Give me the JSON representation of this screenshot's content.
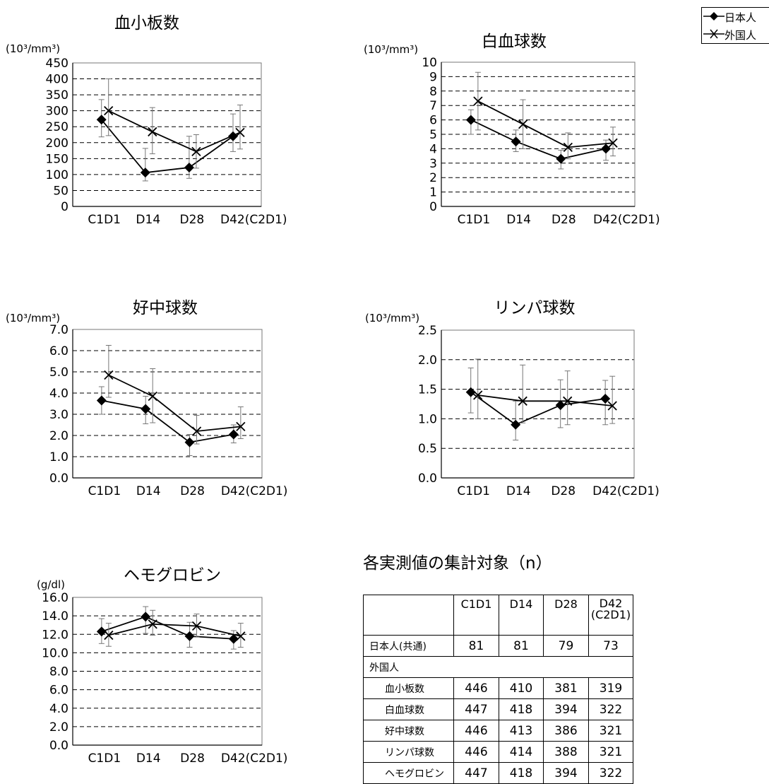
{
  "legend": [
    {
      "name": "日本人",
      "marker": "diamond"
    },
    {
      "name": "外国人",
      "marker": "x"
    }
  ],
  "chart_data": [
    {
      "type": "line",
      "title": "血小板数",
      "ylabel": "(10³/mm³)",
      "categories": [
        "C1D1",
        "D14",
        "D28",
        "D42(C2D1)"
      ],
      "ylim": [
        0,
        450
      ],
      "yticks": [
        "0",
        "50",
        "100",
        "150",
        "200",
        "250",
        "300",
        "350",
        "400",
        "450"
      ],
      "grid": "dashed horizontal",
      "series": [
        {
          "name": "日本人",
          "marker": "diamond",
          "values": [
            272,
            106,
            122,
            220
          ],
          "err_low": [
            218,
            80,
            88,
            172
          ],
          "err_high": [
            335,
            182,
            220,
            290
          ]
        },
        {
          "name": "外国人",
          "marker": "x",
          "values": [
            300,
            234,
            172,
            232
          ],
          "err_low": [
            222,
            165,
            120,
            180
          ],
          "err_high": [
            400,
            310,
            225,
            318
          ]
        }
      ]
    },
    {
      "type": "line",
      "title": "白血球数",
      "ylabel": "(10³/mm³)",
      "categories": [
        "C1D1",
        "D14",
        "D28",
        "D42(C2D1)"
      ],
      "ylim": [
        0,
        10
      ],
      "yticks": [
        "0",
        "1",
        "2",
        "3",
        "4",
        "5",
        "6",
        "7",
        "8",
        "9",
        "10"
      ],
      "grid": "dashed horizontal",
      "series": [
        {
          "name": "日本人",
          "marker": "diamond",
          "values": [
            6.0,
            4.5,
            3.3,
            4.0
          ],
          "err_low": [
            5.0,
            3.8,
            2.6,
            3.2
          ],
          "err_high": [
            6.7,
            5.3,
            3.9,
            4.6
          ]
        },
        {
          "name": "外国人",
          "marker": "x",
          "values": [
            7.3,
            5.7,
            4.1,
            4.4
          ],
          "err_low": [
            5.3,
            4.0,
            3.3,
            3.5
          ],
          "err_high": [
            9.3,
            7.4,
            5.1,
            5.5
          ]
        }
      ]
    },
    {
      "type": "line",
      "title": "好中球数",
      "ylabel": "(10³/mm³)",
      "categories": [
        "C1D1",
        "D14",
        "D28",
        "D42(C2D1)"
      ],
      "ylim": [
        0,
        7
      ],
      "yticks": [
        "0.0",
        "1.0",
        "2.0",
        "3.0",
        "4.0",
        "5.0",
        "6.0",
        "7.0"
      ],
      "grid": "dashed horizontal",
      "series": [
        {
          "name": "日本人",
          "marker": "diamond",
          "values": [
            3.65,
            3.25,
            1.68,
            2.05
          ],
          "err_low": [
            3.0,
            2.55,
            1.05,
            1.65
          ],
          "err_high": [
            4.3,
            3.85,
            2.05,
            2.5
          ]
        },
        {
          "name": "外国人",
          "marker": "x",
          "values": [
            4.85,
            3.85,
            2.2,
            2.42
          ],
          "err_low": [
            3.8,
            2.6,
            1.6,
            1.85
          ],
          "err_high": [
            6.25,
            5.15,
            2.95,
            3.35
          ]
        }
      ]
    },
    {
      "type": "line",
      "title": "リンパ球数",
      "ylabel": "(10³/mm³)",
      "categories": [
        "C1D1",
        "D14",
        "D28",
        "D42(C2D1)"
      ],
      "ylim": [
        0,
        2.5
      ],
      "yticks": [
        "0.0",
        "0.5",
        "1.0",
        "1.5",
        "2.0",
        "2.5"
      ],
      "grid": "dashed horizontal",
      "series": [
        {
          "name": "日本人",
          "marker": "diamond",
          "values": [
            1.45,
            0.9,
            1.23,
            1.34
          ],
          "err_low": [
            1.1,
            0.64,
            0.85,
            0.9
          ],
          "err_high": [
            1.86,
            1.3,
            1.66,
            1.65
          ]
        },
        {
          "name": "外国人",
          "marker": "x",
          "values": [
            1.4,
            1.3,
            1.3,
            1.22
          ],
          "err_low": [
            1.0,
            0.93,
            0.9,
            0.92
          ],
          "err_high": [
            2.01,
            1.91,
            1.81,
            1.72
          ]
        }
      ]
    },
    {
      "type": "line",
      "title": "ヘモグロビン",
      "ylabel": "(g/dl)",
      "categories": [
        "C1D1",
        "D14",
        "D28",
        "D42(C2D1)"
      ],
      "ylim": [
        0,
        16
      ],
      "yticks": [
        "0.0",
        "2.0",
        "4.0",
        "6.0",
        "8.0",
        "10.0",
        "12.0",
        "14.0",
        "16.0"
      ],
      "grid": "dashed horizontal",
      "series": [
        {
          "name": "日本人",
          "marker": "diamond",
          "values": [
            12.3,
            13.9,
            11.8,
            11.5
          ],
          "err_low": [
            11.0,
            12.1,
            10.6,
            10.4
          ],
          "err_high": [
            13.7,
            15.0,
            13.3,
            12.4
          ]
        },
        {
          "name": "外国人",
          "marker": "x",
          "values": [
            11.9,
            13.1,
            12.9,
            11.8
          ],
          "err_low": [
            10.7,
            11.9,
            11.7,
            10.6
          ],
          "err_high": [
            13.2,
            14.6,
            14.2,
            13.2
          ]
        }
      ]
    }
  ],
  "table": {
    "title": "各実測値の集計対象（n）",
    "columns": [
      "C1D1",
      "D14",
      "D28",
      "D42\n(C2D1)"
    ],
    "japanese_row": {
      "label": "日本人(共通)",
      "values": [
        "81",
        "81",
        "79",
        "73"
      ]
    },
    "group_label": "外国人",
    "foreign_rows": [
      {
        "label": "血小板数",
        "values": [
          "446",
          "410",
          "381",
          "319"
        ]
      },
      {
        "label": "白血球数",
        "values": [
          "447",
          "418",
          "394",
          "322"
        ]
      },
      {
        "label": "好中球数",
        "values": [
          "446",
          "413",
          "386",
          "321"
        ]
      },
      {
        "label": "リンパ球数",
        "values": [
          "446",
          "414",
          "388",
          "321"
        ]
      },
      {
        "label": "ヘモグロビン",
        "values": [
          "447",
          "418",
          "394",
          "322"
        ]
      }
    ]
  }
}
